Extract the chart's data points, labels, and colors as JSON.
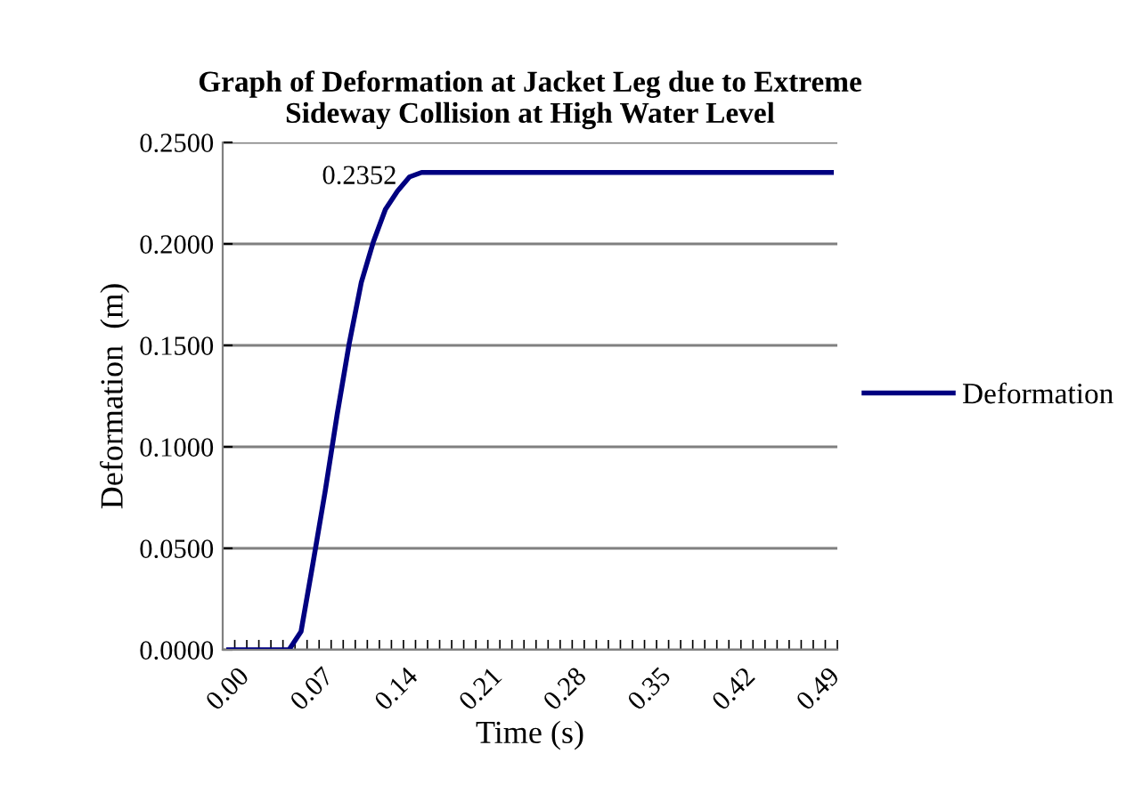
{
  "chart_data": {
    "type": "line",
    "title": "Graph of Deformation at Jacket Leg due to Extreme\nSideway Collision at High Water Level",
    "xlabel": "Time (s)",
    "ylabel": "Deformation  (m)",
    "categories": [
      "0.00",
      null,
      null,
      null,
      null,
      null,
      null,
      "0.07",
      null,
      null,
      null,
      null,
      null,
      null,
      "0.14",
      null,
      null,
      null,
      null,
      null,
      null,
      "0.21",
      null,
      null,
      null,
      null,
      null,
      null,
      "0.28",
      null,
      null,
      null,
      null,
      null,
      null,
      "0.35",
      null,
      null,
      null,
      null,
      null,
      null,
      "0.42",
      null,
      null,
      null,
      null,
      null,
      null,
      "0.49",
      null
    ],
    "series": [
      {
        "name": "Deformation",
        "color": "#000080",
        "values": [
          0,
          0,
          0,
          0,
          0,
          0,
          0.009,
          0.043,
          0.078,
          0.116,
          0.151,
          0.181,
          0.201,
          0.217,
          0.226,
          0.233,
          0.2352,
          0.2352,
          0.2352,
          0.2352,
          0.2352,
          0.2352,
          0.2352,
          0.2352,
          0.2352,
          0.2352,
          0.2352,
          0.2352,
          0.2352,
          0.2352,
          0.2352,
          0.2352,
          0.2352,
          0.2352,
          0.2352,
          0.2352,
          0.2352,
          0.2352,
          0.2352,
          0.2352,
          0.2352,
          0.2352,
          0.2352,
          0.2352,
          0.2352,
          0.2352,
          0.2352,
          0.2352,
          0.2352,
          0.2352,
          0.2352
        ],
        "value_labels": [
          null,
          null,
          null,
          null,
          null,
          null,
          null,
          null,
          null,
          null,
          null,
          null,
          null,
          null,
          null,
          null,
          "0.2352",
          null,
          null,
          null,
          null,
          null,
          null,
          null,
          null,
          null,
          null,
          null,
          null,
          null,
          null,
          null,
          null,
          null,
          null,
          null,
          null,
          null,
          null,
          null,
          null,
          null,
          null,
          null,
          null,
          null,
          null,
          null,
          null,
          null,
          null
        ]
      }
    ],
    "ylim": [
      0,
      0.25
    ],
    "yticks": [
      {
        "value": 0,
        "label": "0.0000"
      },
      {
        "value": 0.05,
        "label": "0.0500"
      },
      {
        "value": 0.1,
        "label": "0.1000"
      },
      {
        "value": 0.15,
        "label": "0.1500"
      },
      {
        "value": 0.2,
        "label": "0.2000"
      },
      {
        "value": 0.25,
        "label": "0.2500"
      }
    ],
    "grid": "y",
    "legend": "right",
    "marker": "none",
    "line_style": "solid"
  }
}
